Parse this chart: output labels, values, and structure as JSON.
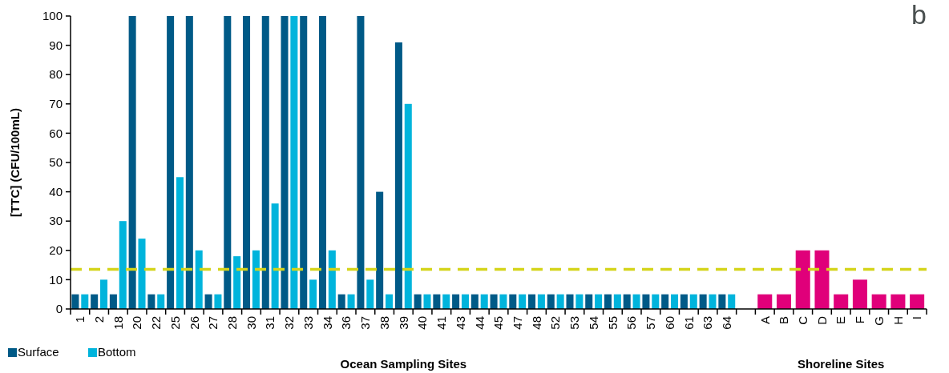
{
  "chart_data": {
    "type": "bar",
    "title": "b",
    "ylabel": "[TTC] (CFU/100mL)",
    "xlabel": "Ocean Sampling Sites",
    "annotations": [
      "Shoreline Sites"
    ],
    "categories": [
      "1",
      "2",
      "18",
      "20",
      "22",
      "25",
      "26",
      "27",
      "28",
      "30",
      "31",
      "32",
      "33",
      "34",
      "36",
      "37",
      "38",
      "39",
      "40",
      "41",
      "43",
      "44",
      "45",
      "47",
      "48",
      "52",
      "53",
      "54",
      "55",
      "56",
      "57",
      "60",
      "61",
      "63",
      "64",
      null,
      "A",
      "B",
      "C",
      "D",
      "E",
      "F",
      "G",
      "H",
      "I"
    ],
    "series": [
      {
        "name": "Surface",
        "color": "#005a87",
        "values": [
          5,
          5,
          5,
          100,
          5,
          100,
          100,
          5,
          100,
          100,
          100,
          100,
          100,
          100,
          5,
          100,
          40,
          91,
          5,
          5,
          5,
          5,
          5,
          5,
          5,
          5,
          5,
          5,
          5,
          5,
          5,
          5,
          5,
          5,
          5,
          null,
          null,
          null,
          null,
          null,
          null,
          null,
          null,
          null,
          null
        ]
      },
      {
        "name": "Bottom",
        "color": "#00b4dc",
        "values": [
          5,
          10,
          30,
          24,
          5,
          45,
          20,
          5,
          18,
          20,
          36,
          100,
          10,
          20,
          5,
          10,
          5,
          70,
          5,
          5,
          5,
          5,
          5,
          5,
          5,
          5,
          5,
          5,
          5,
          5,
          5,
          5,
          5,
          5,
          5,
          null,
          null,
          null,
          null,
          null,
          null,
          null,
          null,
          null,
          null
        ]
      },
      {
        "color": "#e0007a",
        "values": [
          null,
          null,
          null,
          null,
          null,
          null,
          null,
          null,
          null,
          null,
          null,
          null,
          null,
          null,
          null,
          null,
          null,
          null,
          null,
          null,
          null,
          null,
          null,
          null,
          null,
          null,
          null,
          null,
          null,
          null,
          null,
          null,
          null,
          null,
          null,
          null,
          5,
          5,
          20,
          20,
          5,
          10,
          5,
          5,
          5
        ]
      }
    ],
    "ylim": [
      0,
      100
    ],
    "yticks": [
      0,
      10,
      20,
      30,
      40,
      50,
      60,
      70,
      80,
      90,
      100
    ],
    "ref_lines": [
      {
        "axis": "y",
        "value": 13.5,
        "color": "#d4d41a",
        "line_style": "dashed"
      }
    ],
    "grid": false,
    "legend": "bottom left"
  }
}
